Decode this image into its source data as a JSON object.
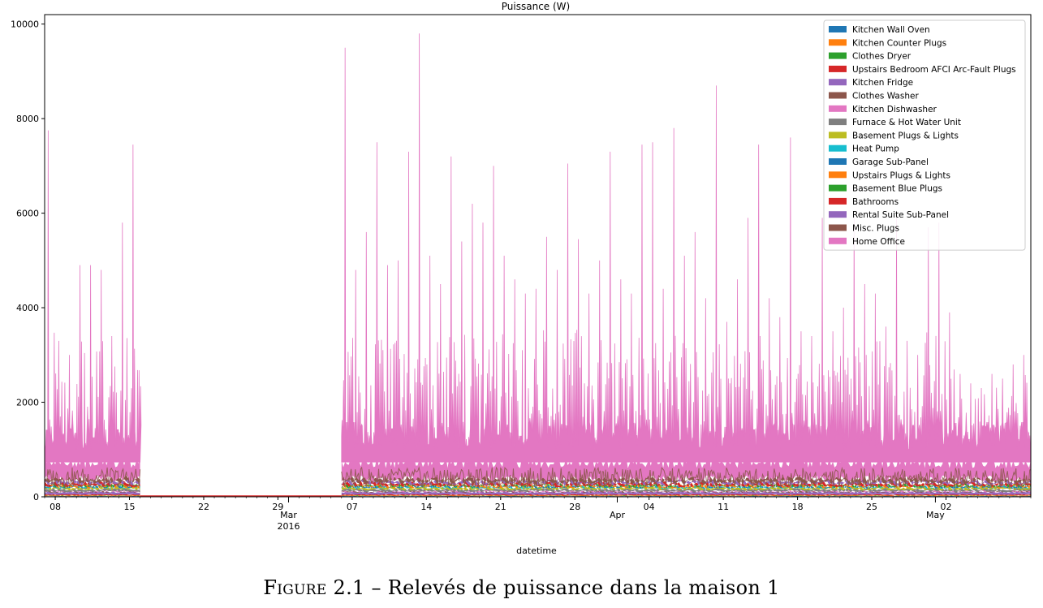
{
  "figure": {
    "label": "Figure 2.1",
    "separator": "–",
    "text": "Relevés de puissance dans la maison 1"
  },
  "chart_data": {
    "type": "area",
    "stacked": true,
    "title": "Puissance (W)",
    "xlabel": "datetime",
    "ylabel": "",
    "ylim": [
      0,
      10200
    ],
    "xlim": [
      "2016-02-07",
      "2016-05-10"
    ],
    "yticks": [
      0,
      2000,
      4000,
      6000,
      8000,
      10000
    ],
    "xticks": [
      {
        "date": "2016-02-08",
        "label": "08"
      },
      {
        "date": "2016-02-15",
        "label": "15"
      },
      {
        "date": "2016-02-22",
        "label": "22"
      },
      {
        "date": "2016-02-29",
        "label": "29"
      },
      {
        "date": "2016-03-01",
        "label": "Mar\n2016",
        "major": true
      },
      {
        "date": "2016-03-07",
        "label": "07"
      },
      {
        "date": "2016-03-14",
        "label": "14"
      },
      {
        "date": "2016-03-21",
        "label": "21"
      },
      {
        "date": "2016-03-28",
        "label": "28"
      },
      {
        "date": "2016-04-01",
        "label": "Apr",
        "major": true
      },
      {
        "date": "2016-04-04",
        "label": "04"
      },
      {
        "date": "2016-04-11",
        "label": "11"
      },
      {
        "date": "2016-04-18",
        "label": "18"
      },
      {
        "date": "2016-04-25",
        "label": "25"
      },
      {
        "date": "2016-05-01",
        "label": "May",
        "major": true
      },
      {
        "date": "2016-05-02",
        "label": "02"
      }
    ],
    "gap": {
      "start": "2016-02-16",
      "end": "2016-03-06",
      "value": 0
    },
    "legend_position": "top-right",
    "series": [
      {
        "name": "Kitchen Wall Oven",
        "color": "#1f77b4",
        "base": 15
      },
      {
        "name": "Kitchen Counter Plugs",
        "color": "#ff7f0e",
        "base": 10
      },
      {
        "name": "Clothes Dryer",
        "color": "#2ca02c",
        "base": 5
      },
      {
        "name": "Upstairs Bedroom AFCI Arc-Fault Plugs",
        "color": "#d62728",
        "base": 20
      },
      {
        "name": "Kitchen Fridge",
        "color": "#9467bd",
        "base": 50
      },
      {
        "name": "Clothes Washer",
        "color": "#8c564b",
        "base": 10
      },
      {
        "name": "Kitchen Dishwasher",
        "color": "#e377c2",
        "base": 10
      },
      {
        "name": "Furnace & Hot Water Unit",
        "color": "#7f7f7f",
        "base": 40
      },
      {
        "name": "Basement Plugs & Lights",
        "color": "#bcbd22",
        "base": 40
      },
      {
        "name": "Heat Pump",
        "color": "#17becf",
        "base": 10
      },
      {
        "name": "Garage Sub-Panel",
        "color": "#1f77b4",
        "base": 5
      },
      {
        "name": "Upstairs Plugs & Lights",
        "color": "#ff7f0e",
        "base": 20
      },
      {
        "name": "Basement Blue Plugs",
        "color": "#2ca02c",
        "base": 10
      },
      {
        "name": "Bathrooms",
        "color": "#d62728",
        "base": 40
      },
      {
        "name": "Rental Suite Sub-Panel",
        "color": "#9467bd",
        "base": 40
      },
      {
        "name": "Misc. Plugs",
        "color": "#8c564b",
        "base": 60
      },
      {
        "name": "Home Office",
        "color": "#e377c2",
        "base": 350
      }
    ],
    "total_peaks": [
      {
        "date": "2016-02-07",
        "value": 7750
      },
      {
        "date": "2016-02-08",
        "value": 3300
      },
      {
        "date": "2016-02-09",
        "value": 3000
      },
      {
        "date": "2016-02-10",
        "value": 4900
      },
      {
        "date": "2016-02-11",
        "value": 4900
      },
      {
        "date": "2016-02-12",
        "value": 4800
      },
      {
        "date": "2016-02-13",
        "value": 3400
      },
      {
        "date": "2016-02-14",
        "value": 5800
      },
      {
        "date": "2016-02-15",
        "value": 7450
      },
      {
        "date": "2016-02-16",
        "value": 7650
      },
      {
        "date": "2016-03-06",
        "value": 9500
      },
      {
        "date": "2016-03-07",
        "value": 4800
      },
      {
        "date": "2016-03-08",
        "value": 5600
      },
      {
        "date": "2016-03-09",
        "value": 7500
      },
      {
        "date": "2016-03-10",
        "value": 4900
      },
      {
        "date": "2016-03-11",
        "value": 5000
      },
      {
        "date": "2016-03-12",
        "value": 7300
      },
      {
        "date": "2016-03-13",
        "value": 9800
      },
      {
        "date": "2016-03-14",
        "value": 5100
      },
      {
        "date": "2016-03-15",
        "value": 4500
      },
      {
        "date": "2016-03-16",
        "value": 7200
      },
      {
        "date": "2016-03-17",
        "value": 5400
      },
      {
        "date": "2016-03-18",
        "value": 6200
      },
      {
        "date": "2016-03-19",
        "value": 5800
      },
      {
        "date": "2016-03-20",
        "value": 7000
      },
      {
        "date": "2016-03-21",
        "value": 5100
      },
      {
        "date": "2016-03-22",
        "value": 4600
      },
      {
        "date": "2016-03-23",
        "value": 4300
      },
      {
        "date": "2016-03-24",
        "value": 4400
      },
      {
        "date": "2016-03-25",
        "value": 5500
      },
      {
        "date": "2016-03-26",
        "value": 4800
      },
      {
        "date": "2016-03-27",
        "value": 7050
      },
      {
        "date": "2016-03-28",
        "value": 5450
      },
      {
        "date": "2016-03-29",
        "value": 4300
      },
      {
        "date": "2016-03-30",
        "value": 5000
      },
      {
        "date": "2016-03-31",
        "value": 7300
      },
      {
        "date": "2016-04-01",
        "value": 4600
      },
      {
        "date": "2016-04-02",
        "value": 4300
      },
      {
        "date": "2016-04-03",
        "value": 7450
      },
      {
        "date": "2016-04-04",
        "value": 7500
      },
      {
        "date": "2016-04-05",
        "value": 4400
      },
      {
        "date": "2016-04-06",
        "value": 7800
      },
      {
        "date": "2016-04-07",
        "value": 5100
      },
      {
        "date": "2016-04-08",
        "value": 5600
      },
      {
        "date": "2016-04-09",
        "value": 4200
      },
      {
        "date": "2016-04-10",
        "value": 8700
      },
      {
        "date": "2016-04-11",
        "value": 3700
      },
      {
        "date": "2016-04-12",
        "value": 4600
      },
      {
        "date": "2016-04-13",
        "value": 5900
      },
      {
        "date": "2016-04-14",
        "value": 7450
      },
      {
        "date": "2016-04-15",
        "value": 4200
      },
      {
        "date": "2016-04-16",
        "value": 3800
      },
      {
        "date": "2016-04-17",
        "value": 7600
      },
      {
        "date": "2016-04-18",
        "value": 3500
      },
      {
        "date": "2016-04-19",
        "value": 3400
      },
      {
        "date": "2016-04-20",
        "value": 5900
      },
      {
        "date": "2016-04-21",
        "value": 3500
      },
      {
        "date": "2016-04-22",
        "value": 4000
      },
      {
        "date": "2016-04-23",
        "value": 5900
      },
      {
        "date": "2016-04-24",
        "value": 4500
      },
      {
        "date": "2016-04-25",
        "value": 4300
      },
      {
        "date": "2016-04-26",
        "value": 3600
      },
      {
        "date": "2016-04-27",
        "value": 5900
      },
      {
        "date": "2016-04-28",
        "value": 3300
      },
      {
        "date": "2016-04-29",
        "value": 3000
      },
      {
        "date": "2016-04-30",
        "value": 5700
      },
      {
        "date": "2016-05-01",
        "value": 5800
      },
      {
        "date": "2016-05-02",
        "value": 3900
      },
      {
        "date": "2016-05-03",
        "value": 2600
      },
      {
        "date": "2016-05-04",
        "value": 2400
      },
      {
        "date": "2016-05-05",
        "value": 2300
      },
      {
        "date": "2016-05-06",
        "value": 2600
      },
      {
        "date": "2016-05-07",
        "value": 2500
      },
      {
        "date": "2016-05-08",
        "value": 2800
      },
      {
        "date": "2016-05-09",
        "value": 3000
      }
    ]
  }
}
